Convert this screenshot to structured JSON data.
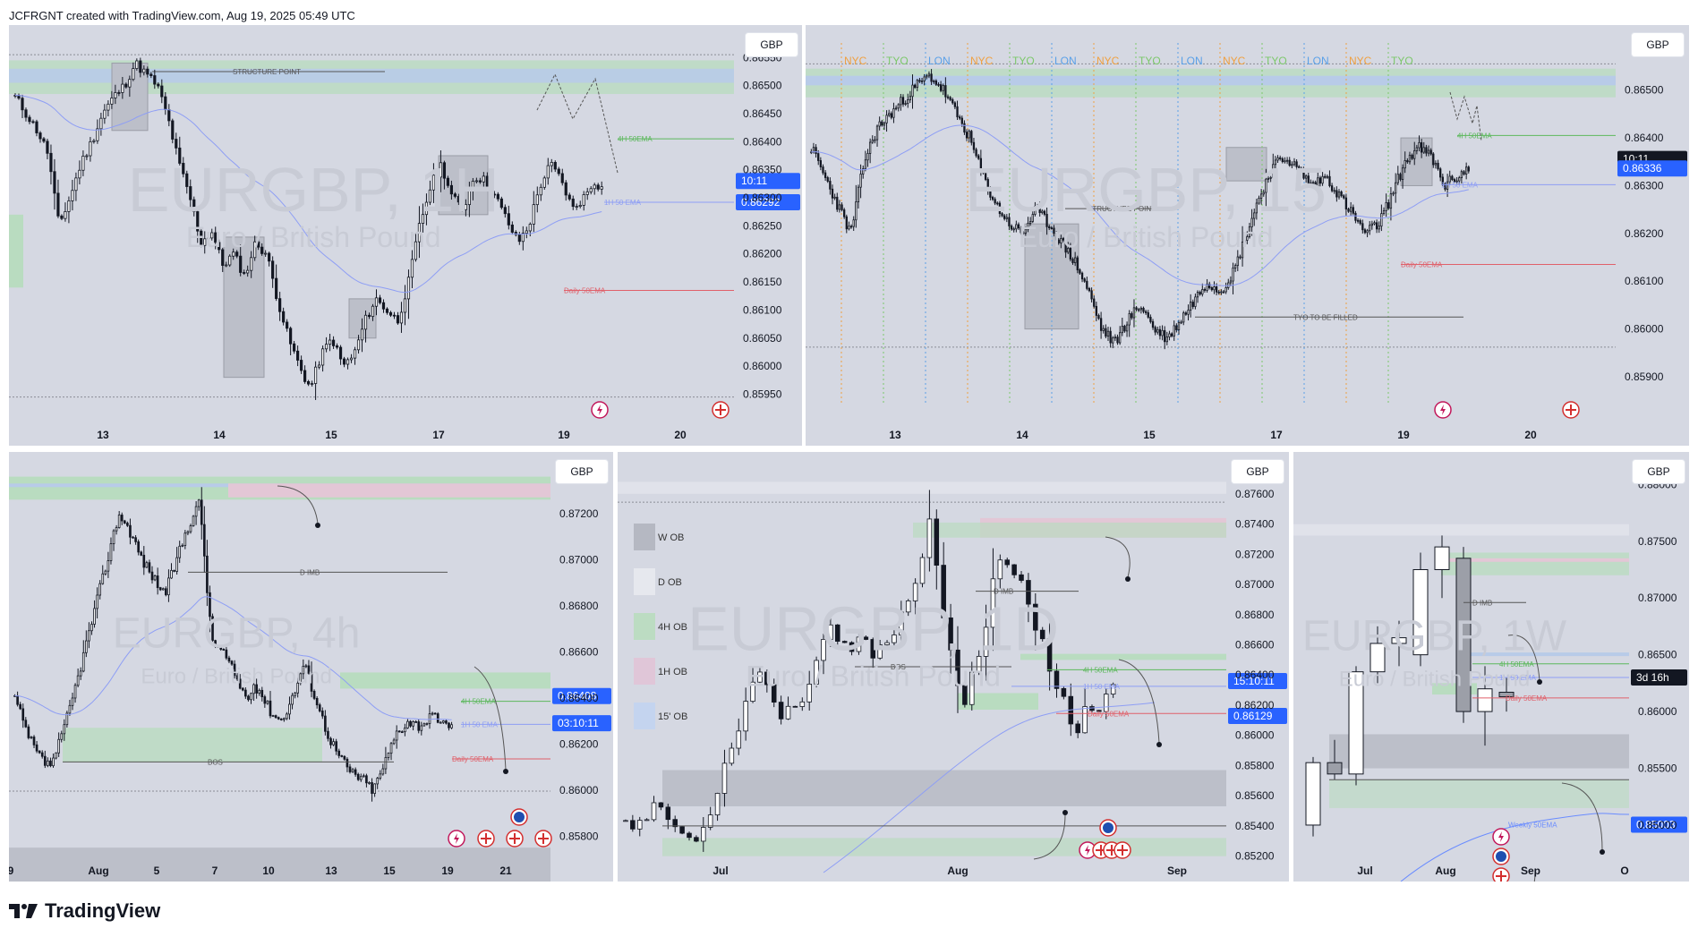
{
  "header": {
    "text": "JCFRGNT created with TradingView.com, Aug 19, 2025 05:49 UTC"
  },
  "footer": {
    "brand": "TradingView"
  },
  "colors": {
    "candle": "#131722",
    "ema1h": "#8e9ef5",
    "ema4h": "#5cb85c",
    "daily": "#e0606a",
    "weekly": "#6a8cff",
    "tyo": "#7cc86a",
    "lon": "#5aa0e8",
    "nyc": "#f0a040",
    "zone_green": "#b9dcc0",
    "zone_blue": "#b8cbe8",
    "zone_grey": "#bcbfc9",
    "zone_pink": "#e3c7d6",
    "price_blue": "#2962ff",
    "price_black": "#131722"
  },
  "chart_data": [
    {
      "id": "p1",
      "type": "candlestick",
      "symbol": "EURGBP, 1H",
      "name": "Euro / British Pound",
      "currency": "GBP",
      "x_ticks": [
        "13",
        "14",
        "15",
        "17",
        "19",
        "20"
      ],
      "y_ticks": [
        "0.86550",
        "0.86500",
        "0.86450",
        "0.86400",
        "0.86350",
        "0.86300",
        "0.86250",
        "0.86200",
        "0.86150",
        "0.86100",
        "0.86050",
        "0.86000",
        "0.85950"
      ],
      "ylim": [
        0.8593,
        0.8656
      ],
      "path": [
        0.8648,
        0.8645,
        0.8642,
        0.8638,
        0.8625,
        0.863,
        0.8636,
        0.864,
        0.8645,
        0.8648,
        0.865,
        0.8654,
        0.8652,
        0.865,
        0.8644,
        0.8636,
        0.863,
        0.8622,
        0.8624,
        0.8618,
        0.862,
        0.8616,
        0.8622,
        0.862,
        0.8612,
        0.8605,
        0.86,
        0.8596,
        0.8602,
        0.8605,
        0.86,
        0.8602,
        0.8608,
        0.8612,
        0.861,
        0.8608,
        0.8615,
        0.8625,
        0.8632,
        0.8636,
        0.863,
        0.8628,
        0.8634,
        0.8633,
        0.863,
        0.8626,
        0.8622,
        0.8625,
        0.8632,
        0.8636,
        0.8633,
        0.8628,
        0.863,
        0.8633,
        0.8631
      ],
      "annotations": {
        "structure_point": "STRUCTURE POINT",
        "ema4h": "4H 50EMA",
        "ema1h": "1H 50 EMA",
        "daily": "Daily 50EMA"
      },
      "price_labels": [
        {
          "text": "10:11",
          "value": 0.8633,
          "color": "#2962ff"
        },
        {
          "text": "0.86292",
          "value": 0.86292,
          "color": "#2962ff"
        }
      ]
    },
    {
      "id": "p2",
      "type": "candlestick",
      "symbol": "EURGBP, 15",
      "name": "Euro / British Pound",
      "currency": "GBP",
      "x_ticks": [
        "13",
        "14",
        "15",
        "17",
        "19",
        "20"
      ],
      "y_ticks": [
        "0.86500",
        "0.86400",
        "0.86300",
        "0.86200",
        "0.86100",
        "0.86000",
        "0.85900"
      ],
      "ylim": [
        0.8584,
        0.8658
      ],
      "path": [
        0.8638,
        0.8632,
        0.8626,
        0.862,
        0.8635,
        0.8642,
        0.8645,
        0.8648,
        0.8651,
        0.8653,
        0.865,
        0.8645,
        0.864,
        0.8632,
        0.8626,
        0.8622,
        0.862,
        0.8625,
        0.8622,
        0.8618,
        0.8614,
        0.8608,
        0.86,
        0.8597,
        0.8602,
        0.8605,
        0.86,
        0.8598,
        0.8602,
        0.8606,
        0.861,
        0.8608,
        0.8612,
        0.862,
        0.8628,
        0.8634,
        0.8636,
        0.8633,
        0.863,
        0.8632,
        0.8628,
        0.8624,
        0.862,
        0.8622,
        0.8628,
        0.8635,
        0.8638,
        0.8636,
        0.863,
        0.8632,
        0.8634
      ],
      "sessions": [
        "NYC",
        "TYO",
        "LON",
        "NYC",
        "TYO",
        "LON",
        "NYC",
        "TYO",
        "LON",
        "NYC",
        "TYO",
        "LON",
        "NYC",
        "TYO"
      ],
      "annotations": {
        "structure_point": "STRUCTURE POINT",
        "ema4h": "4H 50EMA",
        "ema1h": "1H 50 EMA",
        "daily": "Daily 50EMA",
        "gap": "TYO TO BE  FILLED"
      },
      "price_labels": [
        {
          "text": "10:11",
          "value": 0.86356,
          "color": "#131722"
        },
        {
          "text": "0.86336",
          "value": 0.86336,
          "color": "#2962ff"
        }
      ]
    },
    {
      "id": "p3",
      "type": "candlestick",
      "symbol": "EURGBP, 4h",
      "name": "Euro / British Pound",
      "currency": "GBP",
      "x_ticks": [
        "9",
        "Aug",
        "5",
        "7",
        "10",
        "13",
        "15",
        "19",
        "21"
      ],
      "y_ticks": [
        "0.87200",
        "0.87000",
        "0.86800",
        "0.86600",
        "0.86400",
        "0.86200",
        "0.86000",
        "0.85800"
      ],
      "ylim": [
        0.857,
        0.8737
      ],
      "path": [
        0.864,
        0.8625,
        0.8615,
        0.861,
        0.8622,
        0.864,
        0.866,
        0.868,
        0.87,
        0.872,
        0.8712,
        0.87,
        0.8692,
        0.8685,
        0.87,
        0.8715,
        0.8725,
        0.8665,
        0.866,
        0.865,
        0.864,
        0.8645,
        0.8635,
        0.863,
        0.864,
        0.8655,
        0.864,
        0.8625,
        0.8615,
        0.8608,
        0.8605,
        0.86,
        0.8612,
        0.8625,
        0.863,
        0.8628,
        0.8632,
        0.8628,
        0.863
      ],
      "annotations": {
        "d_imb": "D IMB",
        "bos": "BOS",
        "ema4h": "4H 50EMA",
        "ema1h": "1H 50 EMA",
        "daily": "Daily 50EMA"
      },
      "price_labels": [
        {
          "text": "0.86408",
          "value": 0.86408,
          "color": "#2962ff"
        },
        {
          "text": "03:10:11",
          "value": 0.8629,
          "color": "#2962ff"
        }
      ]
    },
    {
      "id": "p4",
      "type": "candlestick",
      "symbol": "EURGBP, 1D",
      "name": "Euro / British Pound",
      "currency": "GBP",
      "x_ticks": [
        "Jul",
        "Aug",
        "Sep"
      ],
      "y_ticks": [
        "0.87600",
        "0.87400",
        "0.87200",
        "0.87000",
        "0.86800",
        "0.86600",
        "0.86400",
        "0.86200",
        "0.86000",
        "0.85800",
        "0.85600",
        "0.85400",
        "0.85200"
      ],
      "ylim": [
        0.8518,
        0.877
      ],
      "path": [
        0.8545,
        0.854,
        0.8548,
        0.8555,
        0.8542,
        0.8535,
        0.853,
        0.854,
        0.856,
        0.8585,
        0.8605,
        0.863,
        0.8645,
        0.8625,
        0.8612,
        0.862,
        0.8628,
        0.865,
        0.8672,
        0.866,
        0.8655,
        0.8665,
        0.8655,
        0.866,
        0.867,
        0.869,
        0.8705,
        0.8745,
        0.869,
        0.865,
        0.862,
        0.8645,
        0.867,
        0.872,
        0.871,
        0.8705,
        0.868,
        0.8665,
        0.863,
        0.8625,
        0.86,
        0.862,
        0.8615,
        0.863,
        0.8634
      ],
      "legend": [
        "W OB",
        "D OB",
        "4H OB",
        "1H OB",
        "15' OB"
      ],
      "annotations": {
        "d_imb": "D IMB",
        "bos": "BOS",
        "ema4h": "4H 50EMA",
        "ema1h": "1H 50 EMA",
        "daily": "Daily 50EMA"
      },
      "price_labels": [
        {
          "text": "15:10:11",
          "value": 0.8636,
          "color": "#2962ff"
        },
        {
          "text": "0.86129",
          "value": 0.86129,
          "color": "#2962ff"
        }
      ]
    },
    {
      "id": "p5",
      "type": "candlestick",
      "symbol": "EURGBP, 1W",
      "name": "Euro / British Pound",
      "currency": "GBP",
      "x_ticks": [
        "Jul",
        "Aug",
        "Sep",
        "O"
      ],
      "y_ticks": [
        "0.88000",
        "0.87500",
        "0.87000",
        "0.86500",
        "0.86000",
        "0.85500",
        "0.85000"
      ],
      "ylim": [
        0.847,
        0.8805
      ],
      "candles": [
        [
          0.85,
          0.856,
          0.849,
          0.8555
        ],
        [
          0.8555,
          0.8575,
          0.854,
          0.8545
        ],
        [
          0.8545,
          0.864,
          0.8535,
          0.8635
        ],
        [
          0.8635,
          0.8675,
          0.8625,
          0.866
        ],
        [
          0.866,
          0.868,
          0.864,
          0.8665
        ],
        [
          0.865,
          0.874,
          0.864,
          0.8725
        ],
        [
          0.8725,
          0.8755,
          0.87,
          0.8745
        ],
        [
          0.8735,
          0.8745,
          0.859,
          0.86
        ],
        [
          0.86,
          0.864,
          0.857,
          0.862
        ],
        [
          0.8617,
          0.863,
          0.86,
          0.8613
        ]
      ],
      "annotations": {
        "d_imb": "D IMB",
        "ema4h": "4H 50EMA",
        "ema1h": "1H 50 EMA",
        "daily": "Daily 50EMA",
        "weekly": "Weekly 50EMA"
      },
      "price_labels": [
        {
          "text": "3d 16h",
          "value": 0.863,
          "color": "#131722"
        },
        {
          "text": "0.85003",
          "value": 0.85003,
          "color": "#2962ff"
        }
      ]
    }
  ]
}
